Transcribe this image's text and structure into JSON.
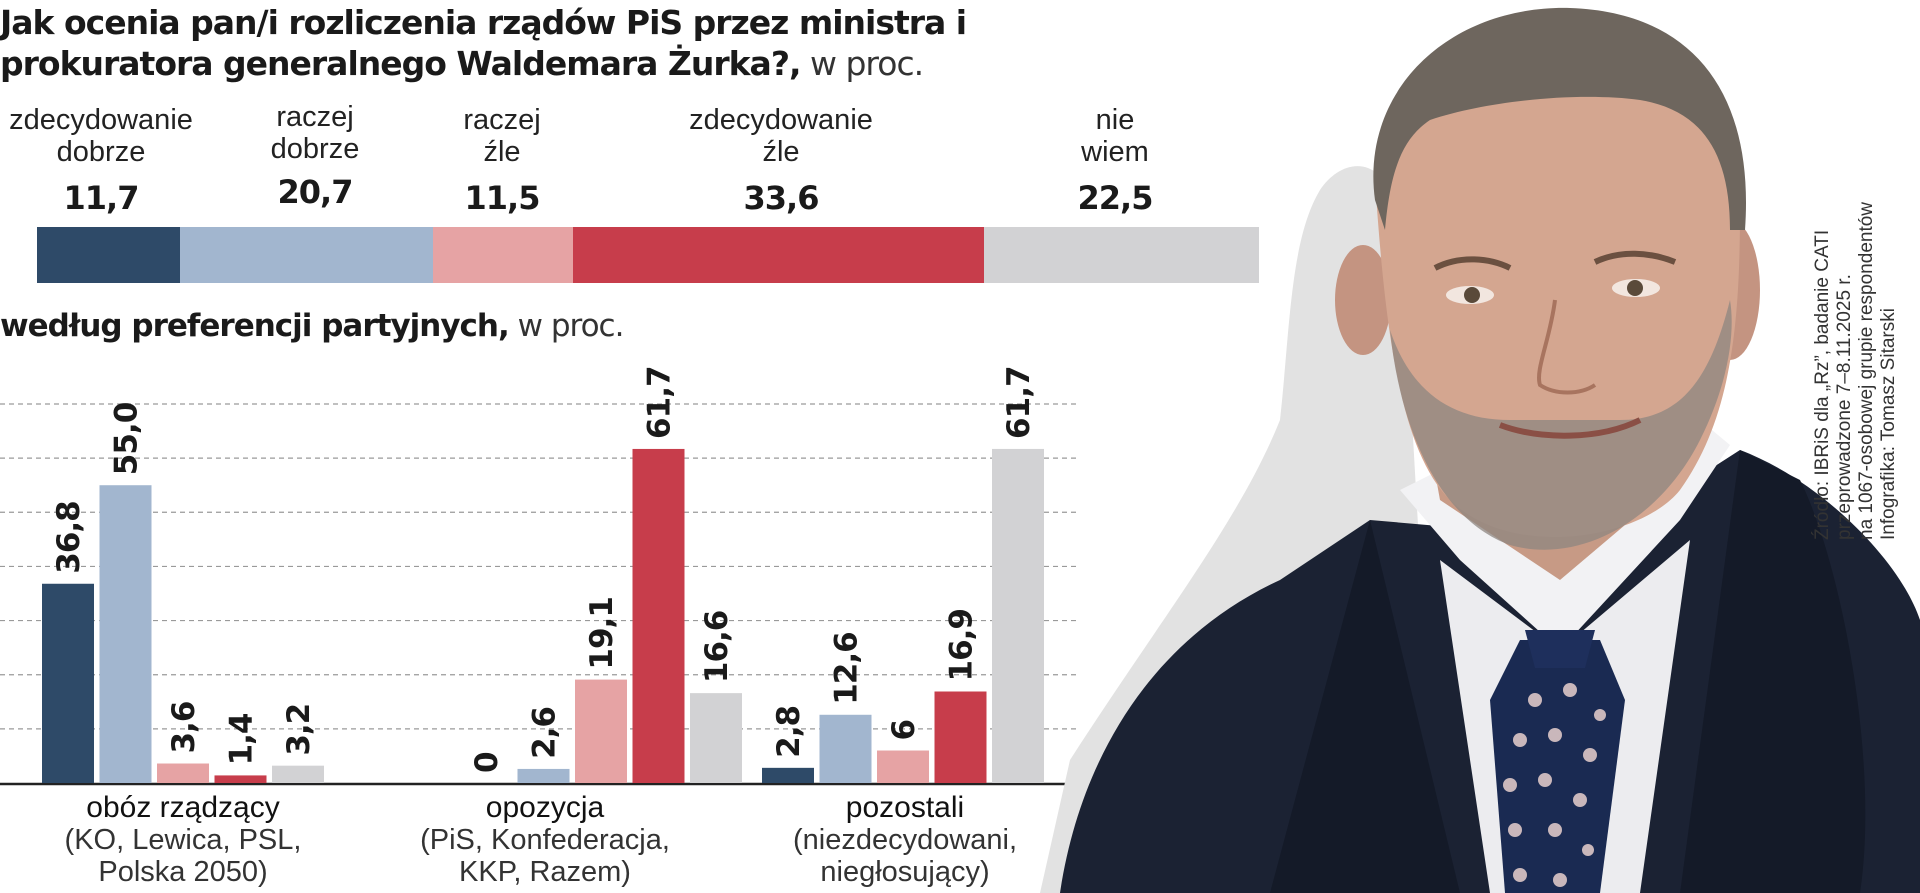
{
  "title": {
    "bold": "Jak ocenia pan/i rozliczenia rządów PiS przez ministra i prokuratora generalnego Waldemara Żurka?,",
    "unit": " w proc."
  },
  "subtitle": {
    "bold": "według preferencji partyjnych,",
    "unit": " w proc."
  },
  "source": {
    "line1": "Źródło: IBRiS dla „Rz”, badanie CATI",
    "line2": "przeprowadzone 7–8.11.2025 r.",
    "line3": "na 1067-osobowej grupie respondentów",
    "line4": "Infografika: Tomasz Sitarski"
  },
  "colors": {
    "zdecydowanie_dobrze": "#2e4a68",
    "raczej_dobrze": "#a2b6cf",
    "raczej_zle": "#e6a3a4",
    "zdecydowanie_zle": "#c73d4b",
    "nie_wiem": "#d2d2d4"
  },
  "chart_data": [
    {
      "type": "bar",
      "orientation": "horizontal-stacked",
      "categories": [
        {
          "line1": "zdecydowanie",
          "line2": "dobrze",
          "value": 11.7,
          "label": "11,7",
          "color": "#2e4a68"
        },
        {
          "line1": "raczej",
          "line2": "dobrze",
          "value": 20.7,
          "label": "20,7",
          "color": "#a2b6cf"
        },
        {
          "line1": "raczej",
          "line2": "źle",
          "value": 11.5,
          "label": "11,5",
          "color": "#e6a3a4"
        },
        {
          "line1": "zdecydowanie",
          "line2": "źle",
          "value": 33.6,
          "label": "33,6",
          "color": "#c73d4b"
        },
        {
          "line1": "nie",
          "line2": "wiem",
          "value": 22.5,
          "label": "22,5",
          "color": "#d2d2d4"
        }
      ]
    },
    {
      "type": "bar",
      "ylim": [
        0,
        70
      ],
      "grid": true,
      "groups": [
        {
          "name": "obóz rządzący",
          "desc1": "(KO, Lewica, PSL,",
          "desc2": "Polska 2050)",
          "values": [
            36.8,
            55.0,
            3.6,
            1.4,
            3.2
          ],
          "labels": [
            "36,8",
            "55,0",
            "3,6",
            "1,4",
            "3,2"
          ]
        },
        {
          "name": "opozycja",
          "desc1": "(PiS, Konfederacja,",
          "desc2": "KKP, Razem)",
          "values": [
            0,
            2.6,
            19.1,
            61.7,
            16.6
          ],
          "labels": [
            "0",
            "2,6",
            "19,1",
            "61,7",
            "16,6"
          ]
        },
        {
          "name": "pozostali",
          "desc1": "(niezdecydowani,",
          "desc2": "niegłosujący)",
          "values": [
            2.8,
            12.6,
            6,
            16.9,
            61.7
          ],
          "labels": [
            "2,8",
            "12,6",
            "6",
            "16,9",
            "61,7"
          ]
        }
      ]
    }
  ]
}
